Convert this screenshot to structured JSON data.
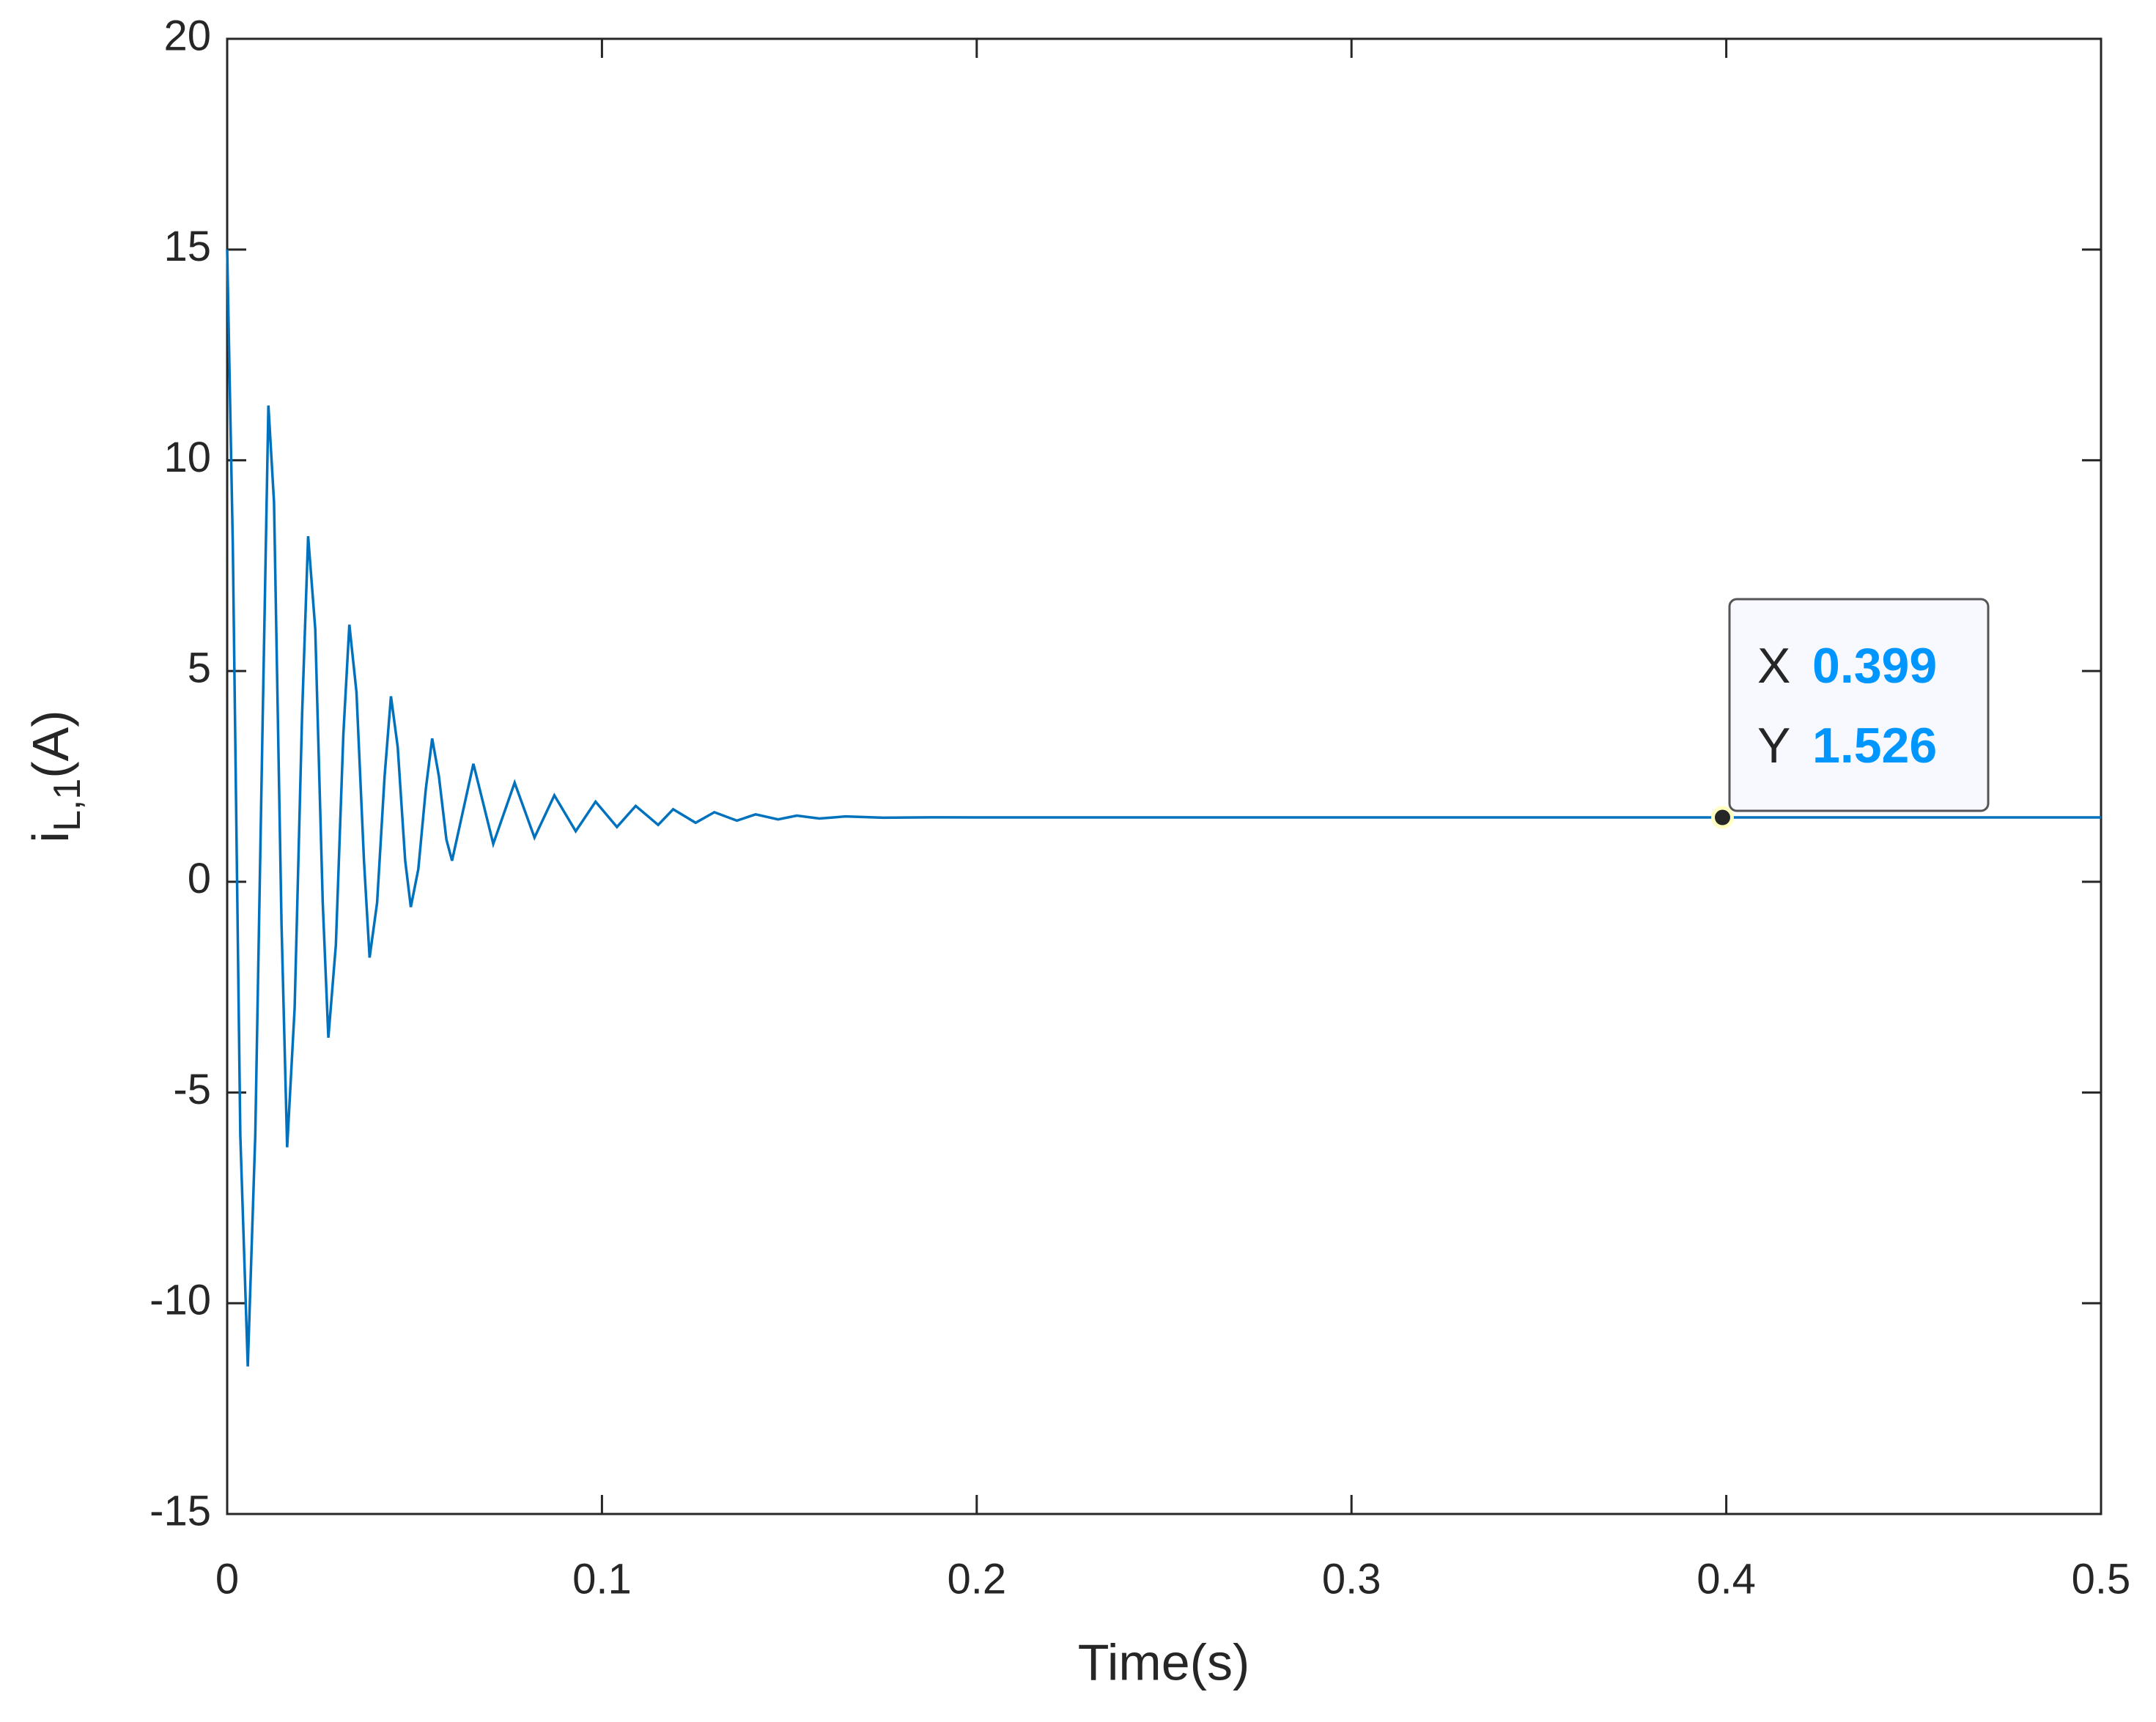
{
  "chart_data": {
    "type": "line",
    "xlabel": "Time(s)",
    "ylabel": [
      "i",
      "L,1",
      "(A)"
    ],
    "x": [
      0,
      0.0015,
      0.0035,
      0.0055,
      0.0075,
      0.0095,
      0.011,
      0.0125,
      0.0145,
      0.016,
      0.018,
      0.02,
      0.0216,
      0.0235,
      0.0255,
      0.027,
      0.029,
      0.031,
      0.0326,
      0.0345,
      0.0365,
      0.038,
      0.04,
      0.042,
      0.0437,
      0.0455,
      0.0475,
      0.049,
      0.051,
      0.053,
      0.0547,
      0.0565,
      0.0585,
      0.06,
      0.0657,
      0.071,
      0.0767,
      0.082,
      0.0873,
      0.093,
      0.0983,
      0.104,
      0.109,
      0.115,
      0.119,
      0.125,
      0.13,
      0.136,
      0.141,
      0.147,
      0.152,
      0.158,
      0.165,
      0.175,
      0.19,
      0.2,
      0.5
    ],
    "values": [
      15,
      8,
      -6,
      -11.5,
      -6,
      4,
      11.3,
      9,
      -1,
      -6.3,
      -3,
      4,
      8.2,
      6,
      -0.5,
      -3.7,
      -1.5,
      3.5,
      6.1,
      4.5,
      0.5,
      -1.8,
      -0.5,
      2.5,
      4.4,
      3.2,
      0.5,
      -0.6,
      0.3,
      2.2,
      3.4,
      2.5,
      1,
      0.5,
      2.8,
      0.9,
      2.35,
      1.05,
      2.05,
      1.2,
      1.9,
      1.3,
      1.8,
      1.35,
      1.72,
      1.4,
      1.65,
      1.45,
      1.6,
      1.48,
      1.57,
      1.5,
      1.55,
      1.52,
      1.53,
      1.526,
      1.526
    ],
    "color": "#0072bd",
    "xlim": [
      0,
      0.5
    ],
    "xticks": [
      0,
      0.1,
      0.2,
      0.3,
      0.4,
      0.5
    ],
    "ylim": [
      -15,
      20
    ],
    "yticks": [
      -15,
      -10,
      -5,
      0,
      5,
      10,
      15,
      20
    ],
    "grid": false,
    "datatip": {
      "x_label": "X",
      "x": 0.399,
      "y_label": "Y",
      "y": 1.526
    }
  }
}
